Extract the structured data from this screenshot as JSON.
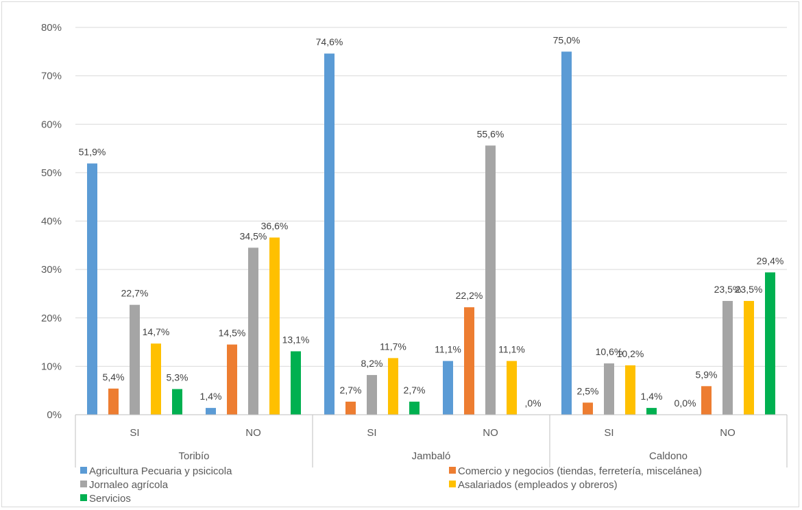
{
  "chart_data": {
    "type": "bar",
    "title": "",
    "xlabel": "",
    "ylabel": "",
    "ylim": [
      0,
      80
    ],
    "y_ticks": [
      "0%",
      "10%",
      "20%",
      "30%",
      "40%",
      "50%",
      "60%",
      "70%",
      "80%"
    ],
    "grid": true,
    "legend_position": "bottom",
    "groups": [
      {
        "name": "Toribío",
        "subcategories": [
          "SI",
          "NO"
        ]
      },
      {
        "name": "Jambaló",
        "subcategories": [
          "SI",
          "NO"
        ]
      },
      {
        "name": "Caldono",
        "subcategories": [
          "SI",
          "NO"
        ]
      }
    ],
    "categories": [
      "Toribío SI",
      "Toribío NO",
      "Jambaló SI",
      "Jambaló NO",
      "Caldono SI",
      "Caldono NO"
    ],
    "series": [
      {
        "name": "Agricultura Pecuaria y psicicola",
        "color": "#5b9bd5",
        "values": [
          51.9,
          1.4,
          74.6,
          11.1,
          75.0,
          0.0
        ],
        "labels": [
          "51,9%",
          "1,4%",
          "74,6%",
          "11,1%",
          "75,0%",
          "0,0%"
        ]
      },
      {
        "name": "Comercio y negocios (tiendas, ferretería, miscelánea)",
        "color": "#ed7d31",
        "values": [
          5.4,
          14.5,
          2.7,
          22.2,
          2.5,
          5.9
        ],
        "labels": [
          "5,4%",
          "14,5%",
          "2,7%",
          "22,2%",
          "2,5%",
          "5,9%"
        ]
      },
      {
        "name": "Jornaleo agrícola",
        "color": "#a5a5a5",
        "values": [
          22.7,
          34.5,
          8.2,
          55.6,
          10.6,
          23.5
        ],
        "labels": [
          "22,7%",
          "34,5%",
          "8,2%",
          "55,6%",
          "10,6%",
          "23,5%"
        ]
      },
      {
        "name": "Asalariados (empleados y obreros)",
        "color": "#ffc000",
        "values": [
          14.7,
          36.6,
          11.7,
          11.1,
          10.2,
          23.5
        ],
        "labels": [
          "14,7%",
          "36,6%",
          "11,7%",
          "11,1%",
          "10,2%",
          "23,5%"
        ]
      },
      {
        "name": "Servicios",
        "color": "#00b050",
        "values": [
          5.3,
          13.1,
          2.7,
          0.0,
          1.4,
          29.4
        ],
        "labels": [
          "5,3%",
          "13,1%",
          "2,7%",
          ",0%",
          "1,4%",
          "29,4%"
        ]
      }
    ]
  }
}
